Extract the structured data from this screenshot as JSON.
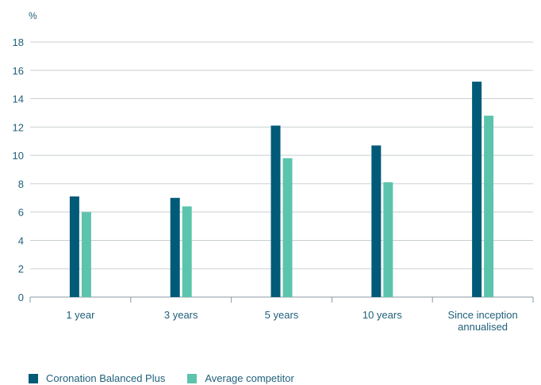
{
  "chart_data": {
    "type": "bar",
    "ylabel": "%",
    "ylim": [
      0,
      18
    ],
    "yticks": [
      0,
      2,
      4,
      6,
      8,
      10,
      12,
      14,
      16,
      18
    ],
    "categories": [
      [
        "1 year"
      ],
      [
        "3 years"
      ],
      [
        "5 years"
      ],
      [
        "10 years"
      ],
      [
        "Since inception",
        "annualised"
      ]
    ],
    "series": [
      {
        "name": "Coronation Balanced Plus",
        "color": "#005a78",
        "values": [
          7.1,
          7.0,
          12.1,
          10.7,
          15.2
        ]
      },
      {
        "name": "Average competitor",
        "color": "#5cc4ac",
        "values": [
          6.0,
          6.4,
          9.8,
          8.1,
          12.8
        ]
      }
    ],
    "grid": true,
    "legend_position": "bottom-left"
  }
}
